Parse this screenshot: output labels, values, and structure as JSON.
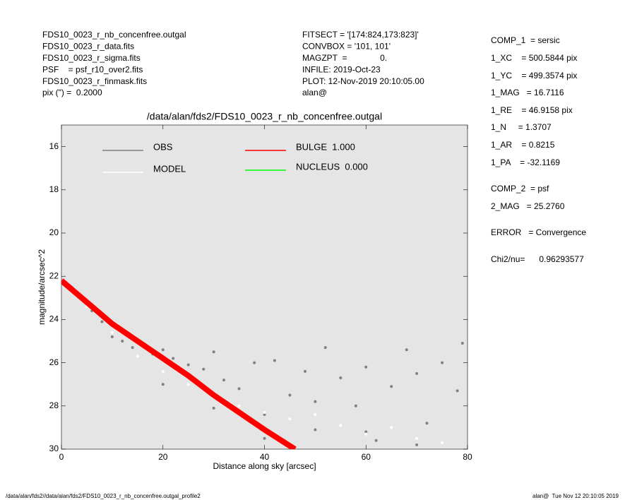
{
  "header": {
    "left": [
      "FDS10_0023_r_nb_concenfree.outgal",
      "FDS10_0023_r_data.fits",
      "FDS10_0023_r_sigma.fits",
      "PSF    = psf_r10_over2.fits",
      "FDS10_0023_r_finmask.fits",
      "pix (\") =  0.2000"
    ],
    "middle": [
      "FITSECT = '[174:824,173:823]'",
      "CONVBOX = '101, 101'",
      "MAGZPT  =              0.",
      "INFILE: 2019-Oct-23",
      "PLOT: 12-Nov-2019 20:10:05.00",
      "alan@"
    ]
  },
  "parameters": [
    "COMP_1  = sersic",
    "1_XC    = 500.5844 pix",
    "1_YC    = 499.3574 pix",
    "1_MAG   = 16.7116",
    "1_RE    = 46.9158 pix",
    "1_N     = 1.3707",
    "1_AR    = 0.8215",
    "1_PA    = -32.1169",
    "COMP_2  = psf",
    "2_MAG   = 25.2760",
    "ERROR   = Convergence",
    "Chi2/nu=      0.96293577"
  ],
  "footer": {
    "left": "/data/alan/fds2//data/alan/fds2/FDS10_0023_r_nb_concenfree.outgal_profile2",
    "right": "alan@  Tue Nov 12 20:10:05 2019"
  },
  "chart_data": {
    "type": "scatter",
    "title": "/data/alan/fds2/FDS10_0023_r_nb_concenfree.outgal",
    "x_label": "Distance along sky [arcsec]",
    "y_label": "magnitude/arcsec^2",
    "xlim": [
      0,
      80
    ],
    "xticks": [
      0,
      20,
      40,
      60,
      80
    ],
    "ylim": [
      30,
      15
    ],
    "yticks": [
      16,
      18,
      20,
      22,
      24,
      26,
      28,
      30
    ],
    "background": "#e5e5e5",
    "series": [
      {
        "name": "OBS",
        "color": "#808080",
        "mark": "point",
        "x": [
          2,
          4,
          6,
          8,
          10,
          12,
          14,
          16,
          18,
          20,
          22,
          25,
          28,
          30,
          32,
          35,
          38,
          40,
          42,
          45,
          48,
          50,
          52,
          55,
          58,
          60,
          62,
          65,
          68,
          70,
          72,
          75,
          78,
          79,
          20,
          30,
          40,
          50,
          60,
          70
        ],
        "values": [
          22.5,
          23.0,
          23.6,
          24.1,
          24.8,
          25.0,
          25.3,
          25.2,
          25.6,
          25.4,
          25.8,
          26.1,
          26.3,
          25.5,
          26.8,
          27.2,
          26.0,
          28.4,
          25.9,
          27.5,
          26.4,
          29.1,
          25.3,
          26.7,
          28.0,
          26.2,
          29.6,
          27.1,
          25.4,
          26.5,
          28.8,
          26.0,
          27.3,
          25.1,
          27.0,
          28.1,
          29.5,
          27.8,
          29.2,
          29.8
        ]
      },
      {
        "name": "MODEL",
        "color": "#ffffff",
        "mark": "point",
        "x": [
          5,
          10,
          15,
          20,
          25,
          30,
          35,
          40,
          45,
          50,
          55,
          60,
          65,
          70,
          75
        ],
        "values": [
          23.4,
          24.6,
          25.7,
          26.4,
          27.0,
          27.6,
          28.0,
          28.3,
          28.6,
          28.4,
          28.9,
          29.3,
          29.0,
          29.5,
          29.7
        ]
      },
      {
        "name": "BULGE  1.000",
        "color": "#ff0000",
        "mark": "line",
        "x": [
          0,
          5,
          10,
          15,
          20,
          25,
          30,
          35,
          40,
          46
        ],
        "values": [
          22.2,
          23.2,
          24.2,
          25.0,
          25.8,
          26.6,
          27.5,
          28.3,
          29.1,
          30.0
        ]
      },
      {
        "name": "NUCLEUS  0.000",
        "color": "#00ff00",
        "mark": "line",
        "x": [],
        "values": []
      }
    ]
  }
}
